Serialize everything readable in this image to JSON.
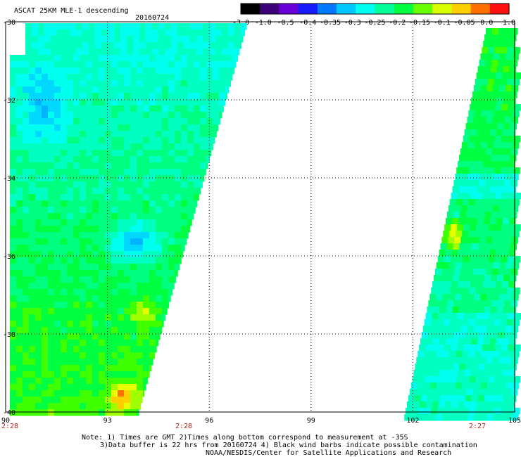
{
  "header": {
    "product": "ASCAT 25KM MLE-1 descending",
    "date": "20160724"
  },
  "colorbar": {
    "tick_labels": [
      "-3.0",
      "-1.0",
      "-0.5",
      "-0.4",
      "-0.35",
      "-0.3",
      "-0.25",
      "-0.2",
      "-0.15",
      "-0.1",
      "-0.05",
      "0.0",
      "1.0"
    ],
    "colors": [
      "#000000",
      "#3c0078",
      "#6a00d8",
      "#1a1aff",
      "#0078ff",
      "#00c8ff",
      "#00ffee",
      "#00ff9a",
      "#00ff40",
      "#6aff00",
      "#d8ff00",
      "#ffd000",
      "#ff7000",
      "#ff1010"
    ]
  },
  "map": {
    "lon_ticks": [
      "90",
      "93",
      "96",
      "99",
      "102",
      "105"
    ],
    "lat_ticks": [
      "-30",
      "-32",
      "-34",
      "-36",
      "-38",
      "-40"
    ],
    "lon_range": [
      90,
      105
    ],
    "lat_range": [
      -40,
      -30
    ],
    "grid": true,
    "swath_west": {
      "lon_range": [
        90,
        97
      ],
      "lat_range": [
        -40,
        -30
      ]
    },
    "swath_east": {
      "lon_range": [
        101.8,
        105
      ],
      "lat_range": [
        -40,
        -30.3
      ]
    }
  },
  "times": [
    "2:28",
    "2:28",
    "2:27"
  ],
  "notes": [
    "Note: 1) Times are GMT 2)Times along bottom correspond to measurement at -35S",
    "3)Data buffer is 22 hrs from 20160724 4) Black wind barbs indicate possible contamination",
    "NOAA/NESDIS/Center for Satellite Applications and Research"
  ]
}
